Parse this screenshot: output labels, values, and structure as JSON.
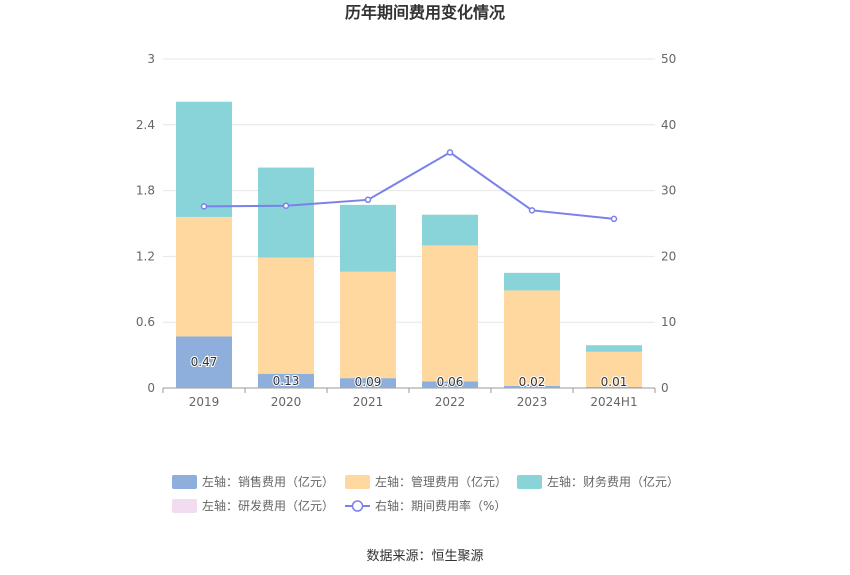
{
  "chart_data": {
    "type": "bar",
    "title": "历年期间费用变化情况",
    "categories": [
      "2019",
      "2020",
      "2021",
      "2022",
      "2023",
      "2024H1"
    ],
    "stacked": true,
    "left_axis": {
      "min": 0,
      "max": 3,
      "ticks": [
        "0",
        "0.6",
        "1.2",
        "1.8",
        "2.4",
        "3"
      ]
    },
    "right_axis": {
      "min": 0,
      "max": 50,
      "ticks": [
        "0",
        "10",
        "20",
        "30",
        "40",
        "50"
      ]
    },
    "series": [
      {
        "name": "左轴：销售费用（亿元）",
        "axis": "left",
        "kind": "bar",
        "color": "#8eaedb",
        "values": [
          0.47,
          0.13,
          0.09,
          0.06,
          0.02,
          0.01
        ],
        "labels": [
          "0.47",
          "0.13",
          "0.09",
          "0.06",
          "0.02",
          "0.01"
        ]
      },
      {
        "name": "左轴：管理费用（亿元）",
        "axis": "left",
        "kind": "bar",
        "color": "#fed89e",
        "values": [
          1.09,
          1.06,
          0.97,
          1.24,
          0.87,
          0.32
        ]
      },
      {
        "name": "左轴：财务费用（亿元）",
        "axis": "left",
        "kind": "bar",
        "color": "#88d4d9",
        "values": [
          1.05,
          0.82,
          0.61,
          0.28,
          0.16,
          0.06
        ]
      },
      {
        "name": "左轴：研发费用（亿元）",
        "axis": "left",
        "kind": "bar",
        "color": "#f2dcef",
        "values": [
          0,
          0,
          0,
          0,
          0,
          0
        ]
      },
      {
        "name": "右轴：期间费用率（%）",
        "axis": "right",
        "kind": "line",
        "color": "#7a81e8",
        "values": [
          27.6,
          27.7,
          28.6,
          35.8,
          27.0,
          25.7
        ]
      }
    ],
    "source": "数据来源：恒生聚源",
    "legend_position": "bottom"
  }
}
